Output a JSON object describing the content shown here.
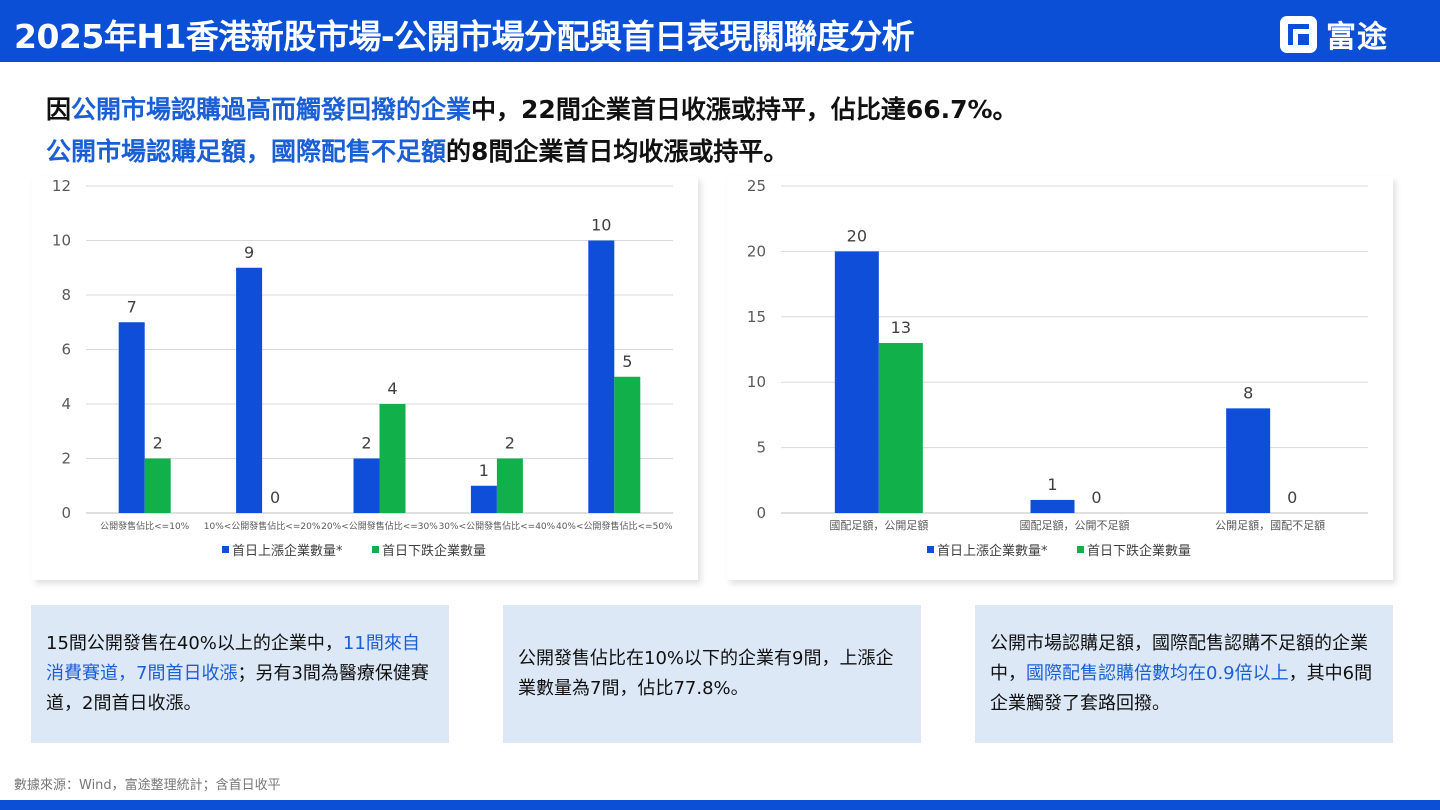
{
  "header": {
    "title": "2025年H1香港新股市場-公開市場分配與首日表現關聯度分析",
    "logo_text": "富途"
  },
  "headline": {
    "line1": [
      "因",
      "公開市場認購過高而觸發回撥的企業",
      "中，22間企業首日收漲或持平，佔比達66.7%。"
    ],
    "line2": [
      "公開市場認購足額，國際配售不足額",
      "的8間企業首日均收漲或持平。"
    ]
  },
  "chart_data": [
    {
      "type": "bar",
      "categories": [
        "公開發售佔比<=10%",
        "10%<公開發售佔比<=20%",
        "20%<公開發售佔比<=30%",
        "30%<公開發售佔比<=40%",
        "40%<公開發售佔比<=50%"
      ],
      "series": [
        {
          "name": "首日上漲企業數量*",
          "values": [
            7,
            9,
            2,
            1,
            10
          ],
          "color": "#0f4ed8"
        },
        {
          "name": "首日下跌企業數量",
          "values": [
            2,
            0,
            4,
            2,
            5
          ],
          "color": "#12b04b"
        }
      ],
      "ylim": [
        0,
        12
      ],
      "yticks": [
        0,
        2,
        4,
        6,
        8,
        10,
        12
      ],
      "grid": true,
      "legend": "bottom"
    },
    {
      "type": "bar",
      "categories": [
        "國配足額，公開足額",
        "國配足額，公開不足額",
        "公開足額，國配不足額"
      ],
      "series": [
        {
          "name": "首日上漲企業數量*",
          "values": [
            20,
            1,
            8
          ],
          "color": "#0f4ed8"
        },
        {
          "name": "首日下跌企業數量",
          "values": [
            13,
            0,
            0
          ],
          "color": "#12b04b"
        }
      ],
      "ylim": [
        0,
        25
      ],
      "yticks": [
        0,
        5,
        10,
        15,
        20,
        25
      ],
      "grid": true,
      "legend": "bottom"
    }
  ],
  "notes": [
    [
      "15間公開發售在40%以上的企業中，",
      "11間來自消費賽道，7間首日收漲",
      "；另有3間為醫療保健賽道，2間首日收漲。"
    ],
    [
      "公開發售佔比在10%以下的企業有9間，上漲企業數量為7間，佔比77.8%。"
    ],
    [
      "公開市場認購足額，國際配售認購不足額的企業中，",
      "國際配售認購倍數均在0.9倍以上",
      "，其中6間企業觸發了套路回撥。"
    ]
  ],
  "source": "數據來源：Wind，富途整理統計；含首日收平"
}
